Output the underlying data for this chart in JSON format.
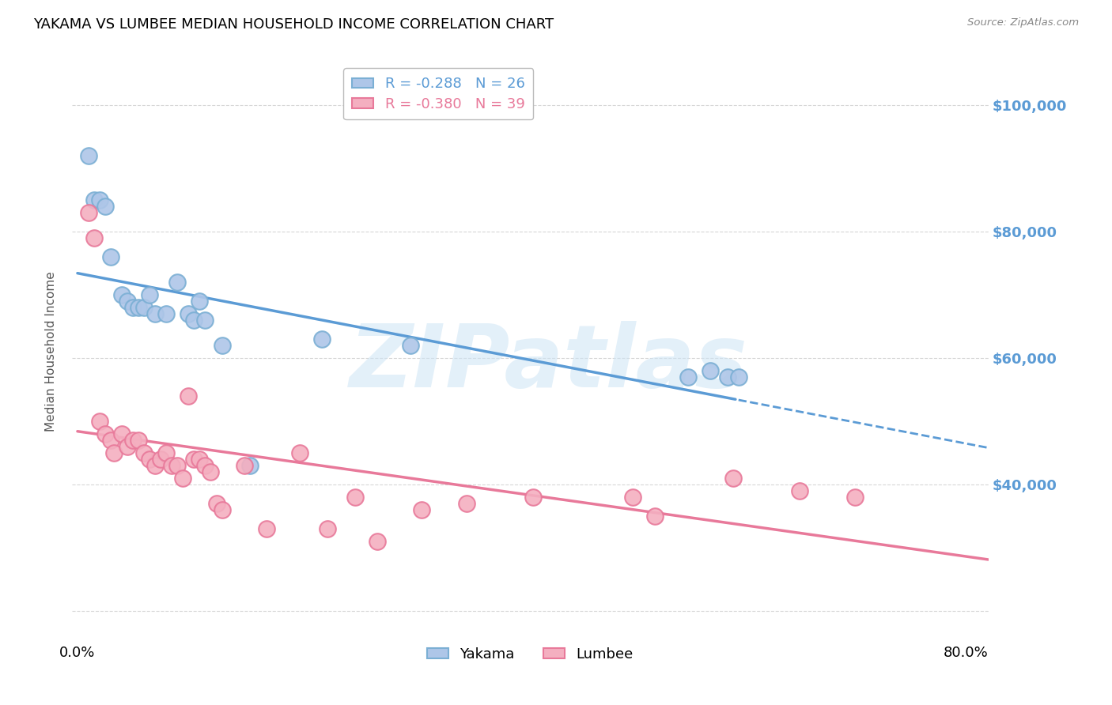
{
  "title": "YAKAMA VS LUMBEE MEDIAN HOUSEHOLD INCOME CORRELATION CHART",
  "source": "Source: ZipAtlas.com",
  "ylabel": "Median Household Income",
  "watermark": "ZIPatlas",
  "yakama": {
    "label": "Yakama",
    "R": -0.288,
    "N": 26,
    "color_fill": "#aec6e8",
    "color_edge": "#7bafd4",
    "line_color": "#5b9bd5",
    "points_x": [
      0.01,
      0.015,
      0.02,
      0.025,
      0.03,
      0.04,
      0.045,
      0.05,
      0.055,
      0.06,
      0.065,
      0.07,
      0.08,
      0.09,
      0.1,
      0.105,
      0.11,
      0.115,
      0.13,
      0.155,
      0.22,
      0.3,
      0.55,
      0.57,
      0.585,
      0.595
    ],
    "points_y": [
      92000,
      85000,
      85000,
      84000,
      76000,
      70000,
      69000,
      68000,
      68000,
      68000,
      70000,
      67000,
      67000,
      72000,
      67000,
      66000,
      69000,
      66000,
      62000,
      43000,
      63000,
      62000,
      57000,
      58000,
      57000,
      57000
    ]
  },
  "lumbee": {
    "label": "Lumbee",
    "R": -0.38,
    "N": 39,
    "color_fill": "#f4afc0",
    "color_edge": "#e8799a",
    "line_color": "#e8799a",
    "points_x": [
      0.01,
      0.015,
      0.02,
      0.025,
      0.03,
      0.033,
      0.04,
      0.045,
      0.05,
      0.055,
      0.06,
      0.065,
      0.07,
      0.075,
      0.08,
      0.085,
      0.09,
      0.095,
      0.1,
      0.105,
      0.11,
      0.115,
      0.12,
      0.125,
      0.13,
      0.15,
      0.17,
      0.2,
      0.225,
      0.25,
      0.27,
      0.31,
      0.35,
      0.41,
      0.5,
      0.52,
      0.59,
      0.65,
      0.7
    ],
    "points_y": [
      83000,
      79000,
      50000,
      48000,
      47000,
      45000,
      48000,
      46000,
      47000,
      47000,
      45000,
      44000,
      43000,
      44000,
      45000,
      43000,
      43000,
      41000,
      54000,
      44000,
      44000,
      43000,
      42000,
      37000,
      36000,
      43000,
      33000,
      45000,
      33000,
      38000,
      31000,
      36000,
      37000,
      38000,
      38000,
      35000,
      41000,
      39000,
      38000
    ]
  },
  "yticks": [
    20000,
    40000,
    60000,
    80000,
    100000
  ],
  "ytick_labels_right": [
    "",
    "$40,000",
    "$60,000",
    "$80,000",
    "$100,000"
  ],
  "ylim": [
    15000,
    107000
  ],
  "xlim": [
    -0.005,
    0.82
  ],
  "xticks": [
    0.0,
    0.8
  ],
  "xtick_labels": [
    "0.0%",
    "80.0%"
  ],
  "background_color": "#ffffff",
  "grid_color": "#cccccc",
  "right_axis_color": "#5b9bd5",
  "title_fontsize": 13,
  "axis_label_fontsize": 11,
  "tick_label_fontsize": 13
}
